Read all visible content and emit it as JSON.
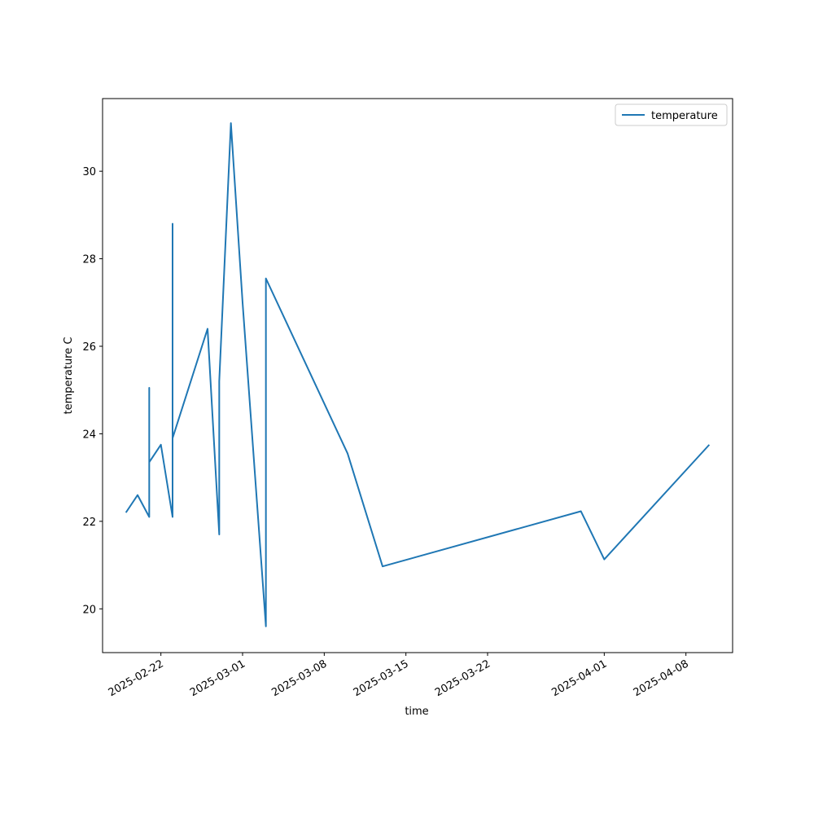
{
  "chart_data": {
    "type": "line",
    "xlabel": "time",
    "ylabel": "temperature C",
    "x": [
      "2025-02-19",
      "2025-02-20",
      "2025-02-21",
      "2025-02-21",
      "2025-02-21",
      "2025-02-22",
      "2025-02-23",
      "2025-02-23",
      "2025-02-23",
      "2025-02-23",
      "2025-02-26",
      "2025-02-27",
      "2025-02-27",
      "2025-02-28",
      "2025-03-01",
      "2025-03-03",
      "2025-03-03",
      "2025-03-10",
      "2025-03-13",
      "2025-03-30",
      "2025-04-01",
      "2025-04-10"
    ],
    "series": [
      {
        "name": "temperature",
        "color": "#1f77b4",
        "values": [
          22.2,
          22.6,
          22.1,
          25.05,
          23.35,
          23.75,
          22.1,
          28.8,
          25.2,
          23.9,
          26.4,
          21.7,
          25.2,
          31.1,
          27.0,
          19.6,
          27.55,
          23.55,
          20.97,
          22.23,
          21.13,
          23.75
        ]
      }
    ],
    "xlim": [
      "2025-02-17",
      "2025-04-12"
    ],
    "xticks": [
      "2025-02-22",
      "2025-03-01",
      "2025-03-08",
      "2025-03-15",
      "2025-03-22",
      "2025-04-01",
      "2025-04-08"
    ],
    "ylim": [
      19,
      31.66
    ],
    "yticks": [
      20,
      22,
      24,
      26,
      28,
      30
    ],
    "legend": "upper right",
    "grid": false
  }
}
